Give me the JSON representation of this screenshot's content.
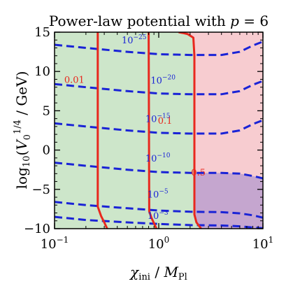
{
  "chart_data": {
    "type": "contour",
    "title": "Power-law potential with p = 6",
    "xlabel": "χ_ini / M_Pl",
    "ylabel": "log10(V0^(1/4) / GeV)",
    "x_scale": "log",
    "xlim": [
      0.1,
      10
    ],
    "ylim": [
      -10,
      15
    ],
    "x_ticks": [
      {
        "value": 0.1,
        "base": "10",
        "exp": "−1"
      },
      {
        "value": 1,
        "base": "10",
        "exp": "0"
      },
      {
        "value": 10,
        "base": "10",
        "exp": "1"
      }
    ],
    "y_ticks": [
      15,
      10,
      5,
      0,
      -5,
      -10
    ],
    "region_colors": {
      "green": "#cde6ca",
      "pink": "#f7ccd0",
      "purple": "#c5a6cf",
      "red_line": "#e8281e",
      "blue_dash": "#1a23d6"
    },
    "regions": [
      {
        "name": "green",
        "color_key": "green",
        "description": "χ_ini left of the 0.5 red contour"
      },
      {
        "name": "pink",
        "color_key": "pink",
        "description": "χ_ini right of the 0.5 red contour"
      },
      {
        "name": "purple",
        "color_key": "purple",
        "description": "lower-right corner, below the 10^-10 blue contour"
      }
    ],
    "red_contours": [
      {
        "label": "0.01",
        "label_pos": [
          0.155,
          9.0
        ],
        "points": [
          [
            0.26,
            15
          ],
          [
            0.26,
            -7.2
          ],
          [
            0.28,
            -8.4
          ],
          [
            0.3,
            -9.2
          ],
          [
            0.32,
            -10
          ]
        ]
      },
      {
        "label": "0.1",
        "label_pos": [
          1.15,
          3.8
        ],
        "points": [
          [
            0.8,
            15
          ],
          [
            0.81,
            -7.8
          ],
          [
            0.85,
            -8.6
          ],
          [
            0.9,
            -9.3
          ],
          [
            0.95,
            -10
          ]
        ]
      },
      {
        "label": "0.5",
        "label_pos": [
          2.4,
          -2.8
        ],
        "points": [
          [
            1.55,
            15
          ],
          [
            1.7,
            14.9
          ],
          [
            1.9,
            14.75
          ],
          [
            2.15,
            14.3
          ],
          [
            2.2,
            12
          ],
          [
            2.2,
            -8.2
          ],
          [
            2.3,
            -9.2
          ],
          [
            2.55,
            -10
          ]
        ]
      }
    ],
    "blue_contours": [
      {
        "label_base": "10",
        "label_exp": "−25",
        "label_pos": [
          0.58,
          14.0
        ],
        "points": [
          [
            0.1,
            13.4
          ],
          [
            0.2,
            13.0
          ],
          [
            0.5,
            12.5
          ],
          [
            1,
            12.2
          ],
          [
            2,
            12.1
          ],
          [
            4,
            12.1
          ],
          [
            6,
            12.5
          ],
          [
            8,
            13.3
          ],
          [
            10,
            13.8
          ]
        ]
      },
      {
        "label_base": "10",
        "label_exp": "−20",
        "label_pos": [
          1.1,
          8.9
        ],
        "points": [
          [
            0.1,
            8.4
          ],
          [
            0.2,
            8.0
          ],
          [
            0.5,
            7.5
          ],
          [
            1,
            7.2
          ],
          [
            2,
            7.1
          ],
          [
            4,
            7.1
          ],
          [
            6,
            7.5
          ],
          [
            8,
            8.3
          ],
          [
            10,
            8.8
          ]
        ]
      },
      {
        "label_base": "10",
        "label_exp": "−15",
        "label_pos": [
          0.98,
          4.0
        ],
        "points": [
          [
            0.1,
            3.4
          ],
          [
            0.2,
            3.0
          ],
          [
            0.5,
            2.5
          ],
          [
            1,
            2.2
          ],
          [
            2,
            2.1
          ],
          [
            4,
            2.1
          ],
          [
            6,
            2.5
          ],
          [
            8,
            3.3
          ],
          [
            10,
            3.8
          ]
        ]
      },
      {
        "label_base": "10",
        "label_exp": "−10",
        "label_pos": [
          0.98,
          -1.0
        ],
        "points": [
          [
            0.1,
            -1.6
          ],
          [
            0.2,
            -2.0
          ],
          [
            0.5,
            -2.5
          ],
          [
            1,
            -2.8
          ],
          [
            2,
            -2.9
          ],
          [
            4,
            -2.9
          ],
          [
            6,
            -3.0
          ],
          [
            8,
            -3.3
          ],
          [
            10,
            -3.6
          ]
        ]
      },
      {
        "label_base": "10",
        "label_exp": "−5",
        "label_pos": [
          0.98,
          -5.6
        ],
        "points": [
          [
            0.1,
            -6.6
          ],
          [
            0.2,
            -7.0
          ],
          [
            0.5,
            -7.4
          ],
          [
            1,
            -7.7
          ],
          [
            2,
            -7.85
          ],
          [
            4,
            -7.9
          ],
          [
            6,
            -8.05
          ],
          [
            8,
            -8.3
          ],
          [
            10,
            -8.6
          ]
        ]
      },
      {
        "label_base": "10",
        "label_exp": "−3",
        "label_pos": [
          0.98,
          -8.3
        ],
        "points": [
          [
            0.1,
            -8.5
          ],
          [
            0.2,
            -8.9
          ],
          [
            0.5,
            -9.2
          ],
          [
            1,
            -9.4
          ],
          [
            2,
            -9.55
          ],
          [
            4,
            -9.6
          ],
          [
            6,
            -9.7
          ],
          [
            8,
            -9.85
          ],
          [
            10,
            -9.95
          ]
        ]
      }
    ]
  }
}
